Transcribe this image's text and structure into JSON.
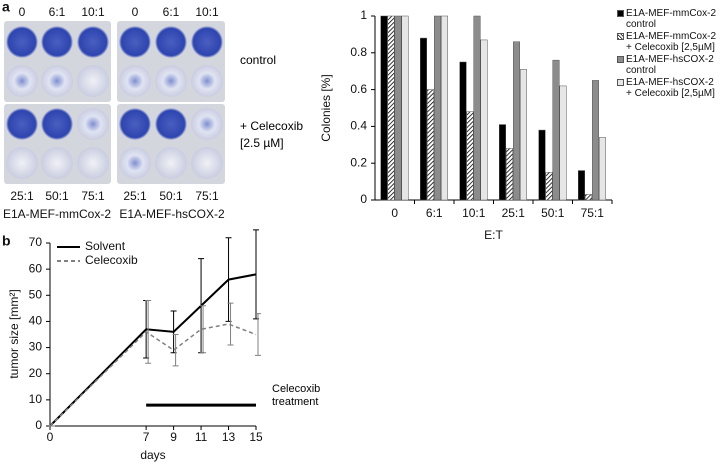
{
  "panels": [
    "a",
    "b"
  ],
  "plates": {
    "top_labels": [
      "0",
      "6:1",
      "10:1",
      "0",
      "6:1",
      "10:1"
    ],
    "bottom_labels": [
      "25:1",
      "50:1",
      "75:1",
      "25:1",
      "50:1",
      "75:1"
    ],
    "cell_lines": [
      "E1A-MEF-mmCox-2",
      "E1A-MEF-hsCOX-2"
    ],
    "conditions": [
      "control",
      "+ Celecoxib\n[2.5 µM]"
    ]
  },
  "chart_data": [
    {
      "type": "bar",
      "ylabel": "Colonies [%]",
      "xlabel": "E:T",
      "categories": [
        "0",
        "6:1",
        "10:1",
        "25:1",
        "50:1",
        "75:1"
      ],
      "series": [
        {
          "name": "E1A-MEF-mmCox-2\ncontrol",
          "color": "#000000",
          "values": [
            1,
            0.88,
            0.75,
            0.41,
            0.38,
            0.16
          ]
        },
        {
          "name": "E1A-MEF-mmCox-2\n+ Celecoxib [2,5µM]",
          "color": "#000000",
          "hatch": true,
          "values": [
            1,
            0.6,
            0.48,
            0.28,
            0.15,
            0.03
          ]
        },
        {
          "name": "E1A-MEF-hsCOX-2\ncontrol",
          "color": "#8c8c8c",
          "values": [
            1,
            1,
            1,
            0.86,
            0.76,
            0.65
          ]
        },
        {
          "name": "E1A-MEF-hsCOX-2\n+ Celecoxib [2,5µM]",
          "color": "#e6e6e6",
          "values": [
            1,
            1,
            0.87,
            0.71,
            0.62,
            0.34
          ]
        }
      ],
      "ylim": [
        0,
        1
      ],
      "yticks": [
        0,
        0.2,
        0.4,
        0.6,
        0.8,
        1
      ]
    },
    {
      "type": "line",
      "ylabel": "tumor size [mm²]",
      "xlabel": "days",
      "x": [
        0,
        7,
        9,
        11,
        13,
        15
      ],
      "series": [
        {
          "name": "Solvent",
          "color": "#000000",
          "dashed": false,
          "values": [
            0,
            37,
            36,
            46,
            56,
            58
          ],
          "errors": [
            0,
            11,
            8,
            18,
            16,
            17
          ]
        },
        {
          "name": "Celecoxib",
          "color": "#808080",
          "dashed": true,
          "values": [
            0,
            36,
            29,
            37,
            39,
            35
          ],
          "errors": [
            0,
            12,
            6,
            9,
            8,
            8
          ]
        }
      ],
      "treatment": {
        "x": [
          7,
          15
        ],
        "y": 8,
        "label": "Celecoxib\ntreatment"
      },
      "xlim": [
        0,
        15
      ],
      "xticks": [
        0,
        7,
        9,
        11,
        13,
        15
      ],
      "ylim": [
        0,
        70
      ],
      "yticks": [
        0,
        10,
        20,
        30,
        40,
        50,
        60,
        70
      ]
    }
  ]
}
